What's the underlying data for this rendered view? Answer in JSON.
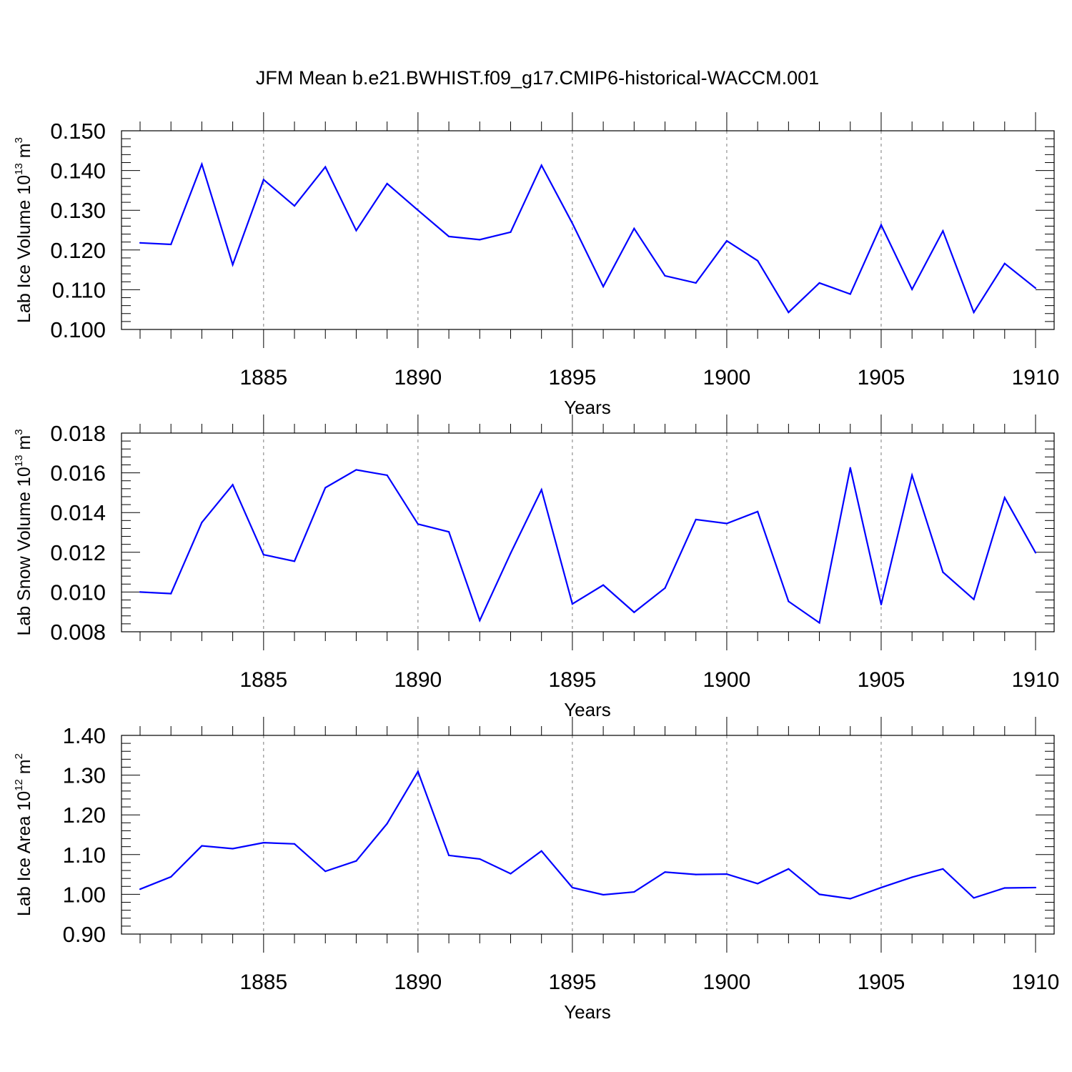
{
  "title": "JFM Mean b.e21.BWHIST.f09_g17.CMIP6-historical-WACCM.001",
  "colors": {
    "series": "#0000ff",
    "axes": "#000000",
    "grid": "#7a7a7a"
  },
  "chart_data": [
    {
      "type": "line",
      "title": "",
      "xlabel": "Years",
      "ylabel": {
        "text": "Lab Ice Volume 10",
        "sup": "13",
        "unit": " m",
        "unit_sup": "3"
      },
      "xlim": [
        1881,
        1910
      ],
      "ylim": [
        0.1,
        0.15
      ],
      "xticks": [
        1885,
        1890,
        1895,
        1900,
        1905,
        1910
      ],
      "xtick_labels": [
        "1885",
        "1890",
        "1895",
        "1900",
        "1905",
        "1910"
      ],
      "yticks": [
        0.1,
        0.11,
        0.12,
        0.13,
        0.14,
        0.15
      ],
      "ytick_labels": [
        "0.100",
        "0.110",
        "0.120",
        "0.130",
        "0.140",
        "0.150"
      ],
      "y_minor_step": 0.002,
      "x_minor_step": 1,
      "grid": "x-major dashed",
      "x": [
        1881,
        1882,
        1883,
        1884,
        1885,
        1886,
        1887,
        1888,
        1889,
        1890,
        1891,
        1892,
        1893,
        1894,
        1895,
        1896,
        1897,
        1898,
        1899,
        1900,
        1901,
        1902,
        1903,
        1904,
        1905,
        1906,
        1907,
        1908,
        1909,
        1910
      ],
      "series": [
        {
          "name": "Lab Ice Volume",
          "values": [
            0.1218,
            0.1214,
            0.1416,
            0.1163,
            0.1377,
            0.1311,
            0.1409,
            0.1249,
            0.1367,
            0.13,
            0.1234,
            0.1226,
            0.1245,
            0.1413,
            0.1267,
            0.1108,
            0.1254,
            0.1135,
            0.1117,
            0.1223,
            0.1173,
            0.1043,
            0.1117,
            0.1089,
            0.1263,
            0.1101,
            0.1248,
            0.1043,
            0.1166,
            0.1104
          ]
        }
      ]
    },
    {
      "type": "line",
      "title": "",
      "xlabel": "Years",
      "ylabel": {
        "text": "Lab Snow Volume 10",
        "sup": "13",
        "unit": " m",
        "unit_sup": "3"
      },
      "xlim": [
        1881,
        1910
      ],
      "ylim": [
        0.008,
        0.018
      ],
      "xticks": [
        1885,
        1890,
        1895,
        1900,
        1905,
        1910
      ],
      "xtick_labels": [
        "1885",
        "1890",
        "1895",
        "1900",
        "1905",
        "1910"
      ],
      "yticks": [
        0.008,
        0.01,
        0.012,
        0.014,
        0.016,
        0.018
      ],
      "ytick_labels": [
        "0.008",
        "0.010",
        "0.012",
        "0.014",
        "0.016",
        "0.018"
      ],
      "y_minor_step": 0.0004,
      "x_minor_step": 1,
      "grid": "x-major dashed",
      "x": [
        1881,
        1882,
        1883,
        1884,
        1885,
        1886,
        1887,
        1888,
        1889,
        1890,
        1891,
        1892,
        1893,
        1894,
        1895,
        1896,
        1897,
        1898,
        1899,
        1900,
        1901,
        1902,
        1903,
        1904,
        1905,
        1906,
        1907,
        1908,
        1909,
        1910
      ],
      "series": [
        {
          "name": "Lab Snow Volume",
          "values": [
            0.01,
            0.00992,
            0.0135,
            0.0154,
            0.01188,
            0.01155,
            0.01525,
            0.01615,
            0.01588,
            0.01342,
            0.01303,
            0.00857,
            0.01195,
            0.01515,
            0.0094,
            0.01035,
            0.00898,
            0.0102,
            0.01365,
            0.01345,
            0.01405,
            0.00953,
            0.00845,
            0.01625,
            0.00937,
            0.01588,
            0.011,
            0.00963,
            0.01475,
            0.01198
          ]
        }
      ]
    },
    {
      "type": "line",
      "title": "",
      "xlabel": "Years",
      "ylabel": {
        "text": "Lab Ice Area 10",
        "sup": "12",
        "unit": " m",
        "unit_sup": "2"
      },
      "xlim": [
        1881,
        1910
      ],
      "ylim": [
        0.9,
        1.4
      ],
      "xticks": [
        1885,
        1890,
        1895,
        1900,
        1905,
        1910
      ],
      "xtick_labels": [
        "1885",
        "1890",
        "1895",
        "1900",
        "1905",
        "1910"
      ],
      "yticks": [
        0.9,
        1.0,
        1.1,
        1.2,
        1.3,
        1.4
      ],
      "ytick_labels": [
        "0.90",
        "1.00",
        "1.10",
        "1.20",
        "1.30",
        "1.40"
      ],
      "y_minor_step": 0.02,
      "x_minor_step": 1,
      "grid": "x-major dashed",
      "x": [
        1881,
        1882,
        1883,
        1884,
        1885,
        1886,
        1887,
        1888,
        1889,
        1890,
        1891,
        1892,
        1893,
        1894,
        1895,
        1896,
        1897,
        1898,
        1899,
        1900,
        1901,
        1902,
        1903,
        1904,
        1905,
        1906,
        1907,
        1908,
        1909,
        1910
      ],
      "series": [
        {
          "name": "Lab Ice Area",
          "values": [
            1.013,
            1.044,
            1.122,
            1.115,
            1.13,
            1.127,
            1.058,
            1.084,
            1.178,
            1.309,
            1.098,
            1.089,
            1.052,
            1.109,
            1.017,
            0.999,
            1.006,
            1.056,
            1.05,
            1.051,
            1.027,
            1.064,
            1.0,
            0.989,
            1.017,
            1.043,
            1.064,
            0.991,
            1.016,
            1.017
          ]
        }
      ]
    }
  ]
}
